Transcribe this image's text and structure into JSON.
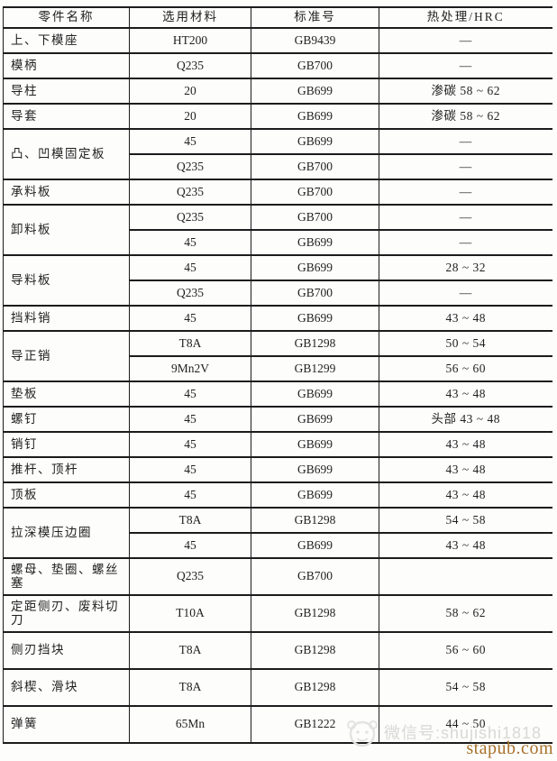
{
  "header": {
    "columns": [
      "零件名称",
      "选用材料",
      "标准号",
      "热处理/HRC"
    ]
  },
  "rows": [
    {
      "name": "上、下模座",
      "subs": [
        {
          "material": "HT200",
          "standard": "GB9439",
          "hrc": "—"
        }
      ]
    },
    {
      "name": "模柄",
      "subs": [
        {
          "material": "Q235",
          "standard": "GB700",
          "hrc": "—"
        }
      ]
    },
    {
      "name": "导柱",
      "subs": [
        {
          "material": "20",
          "standard": "GB699",
          "hrc": "渗碳 58 ~ 62"
        }
      ]
    },
    {
      "name": "导套",
      "subs": [
        {
          "material": "20",
          "standard": "GB699",
          "hrc": "渗碳 58 ~ 62"
        }
      ]
    },
    {
      "name": "凸、凹模固定板",
      "subs": [
        {
          "material": "45",
          "standard": "GB699",
          "hrc": "—"
        },
        {
          "material": "Q235",
          "standard": "GB700",
          "hrc": "—"
        }
      ]
    },
    {
      "name": "承料板",
      "subs": [
        {
          "material": "Q235",
          "standard": "GB700",
          "hrc": "—"
        }
      ]
    },
    {
      "name": "卸料板",
      "subs": [
        {
          "material": "Q235",
          "standard": "GB700",
          "hrc": "—"
        },
        {
          "material": "45",
          "standard": "GB699",
          "hrc": "—"
        }
      ]
    },
    {
      "name": "导料板",
      "subs": [
        {
          "material": "45",
          "standard": "GB699",
          "hrc": "28 ~ 32"
        },
        {
          "material": "Q235",
          "standard": "GB700",
          "hrc": "—"
        }
      ]
    },
    {
      "name": "挡料销",
      "subs": [
        {
          "material": "45",
          "standard": "GB699",
          "hrc": "43 ~ 48"
        }
      ]
    },
    {
      "name": "导正销",
      "subs": [
        {
          "material": "T8A",
          "standard": "GB1298",
          "hrc": "50 ~ 54"
        },
        {
          "material": "9Mn2V",
          "standard": "GB1299",
          "hrc": "56 ~ 60"
        }
      ]
    },
    {
      "name": "垫板",
      "subs": [
        {
          "material": "45",
          "standard": "GB699",
          "hrc": "43 ~ 48"
        }
      ]
    },
    {
      "name": "螺钉",
      "subs": [
        {
          "material": "45",
          "standard": "GB699",
          "hrc": "头部 43 ~ 48"
        }
      ]
    },
    {
      "name": "销钉",
      "subs": [
        {
          "material": "45",
          "standard": "GB699",
          "hrc": "43 ~ 48"
        }
      ]
    },
    {
      "name": "推杆、顶杆",
      "subs": [
        {
          "material": "45",
          "standard": "GB699",
          "hrc": "43 ~ 48"
        }
      ]
    },
    {
      "name": "顶板",
      "subs": [
        {
          "material": "45",
          "standard": "GB699",
          "hrc": "43 ~ 48"
        }
      ]
    },
    {
      "name": "拉深模压边圈",
      "subs": [
        {
          "material": "T8A",
          "standard": "GB1298",
          "hrc": "54 ~ 58"
        },
        {
          "material": "45",
          "standard": "GB699",
          "hrc": "43 ~ 48"
        }
      ]
    },
    {
      "name": "螺母、垫圈、螺丝塞",
      "tall": true,
      "subs": [
        {
          "material": "Q235",
          "standard": "GB700",
          "hrc": ""
        }
      ]
    },
    {
      "name": "定距侧刃、废料切刀",
      "tall": true,
      "subs": [
        {
          "material": "T10A",
          "standard": "GB1298",
          "hrc": "58 ~ 62"
        }
      ]
    },
    {
      "name": "侧刃挡块",
      "tall": true,
      "subs": [
        {
          "material": "T8A",
          "standard": "GB1298",
          "hrc": "56 ~ 60"
        }
      ]
    },
    {
      "name": "斜楔、滑块",
      "tall": true,
      "subs": [
        {
          "material": "T8A",
          "standard": "GB1298",
          "hrc": "54 ~ 58"
        }
      ]
    },
    {
      "name": "弹簧",
      "tall": true,
      "subs": [
        {
          "material": "65Mn",
          "standard": "GB1222",
          "hrc": "44 ~ 50"
        }
      ]
    }
  ],
  "watermark": {
    "wechat_label": "微信号:shujishi1818",
    "site": "stapub.com",
    "site_color": "#a9722c",
    "faint_color": "#d8d8d5"
  }
}
